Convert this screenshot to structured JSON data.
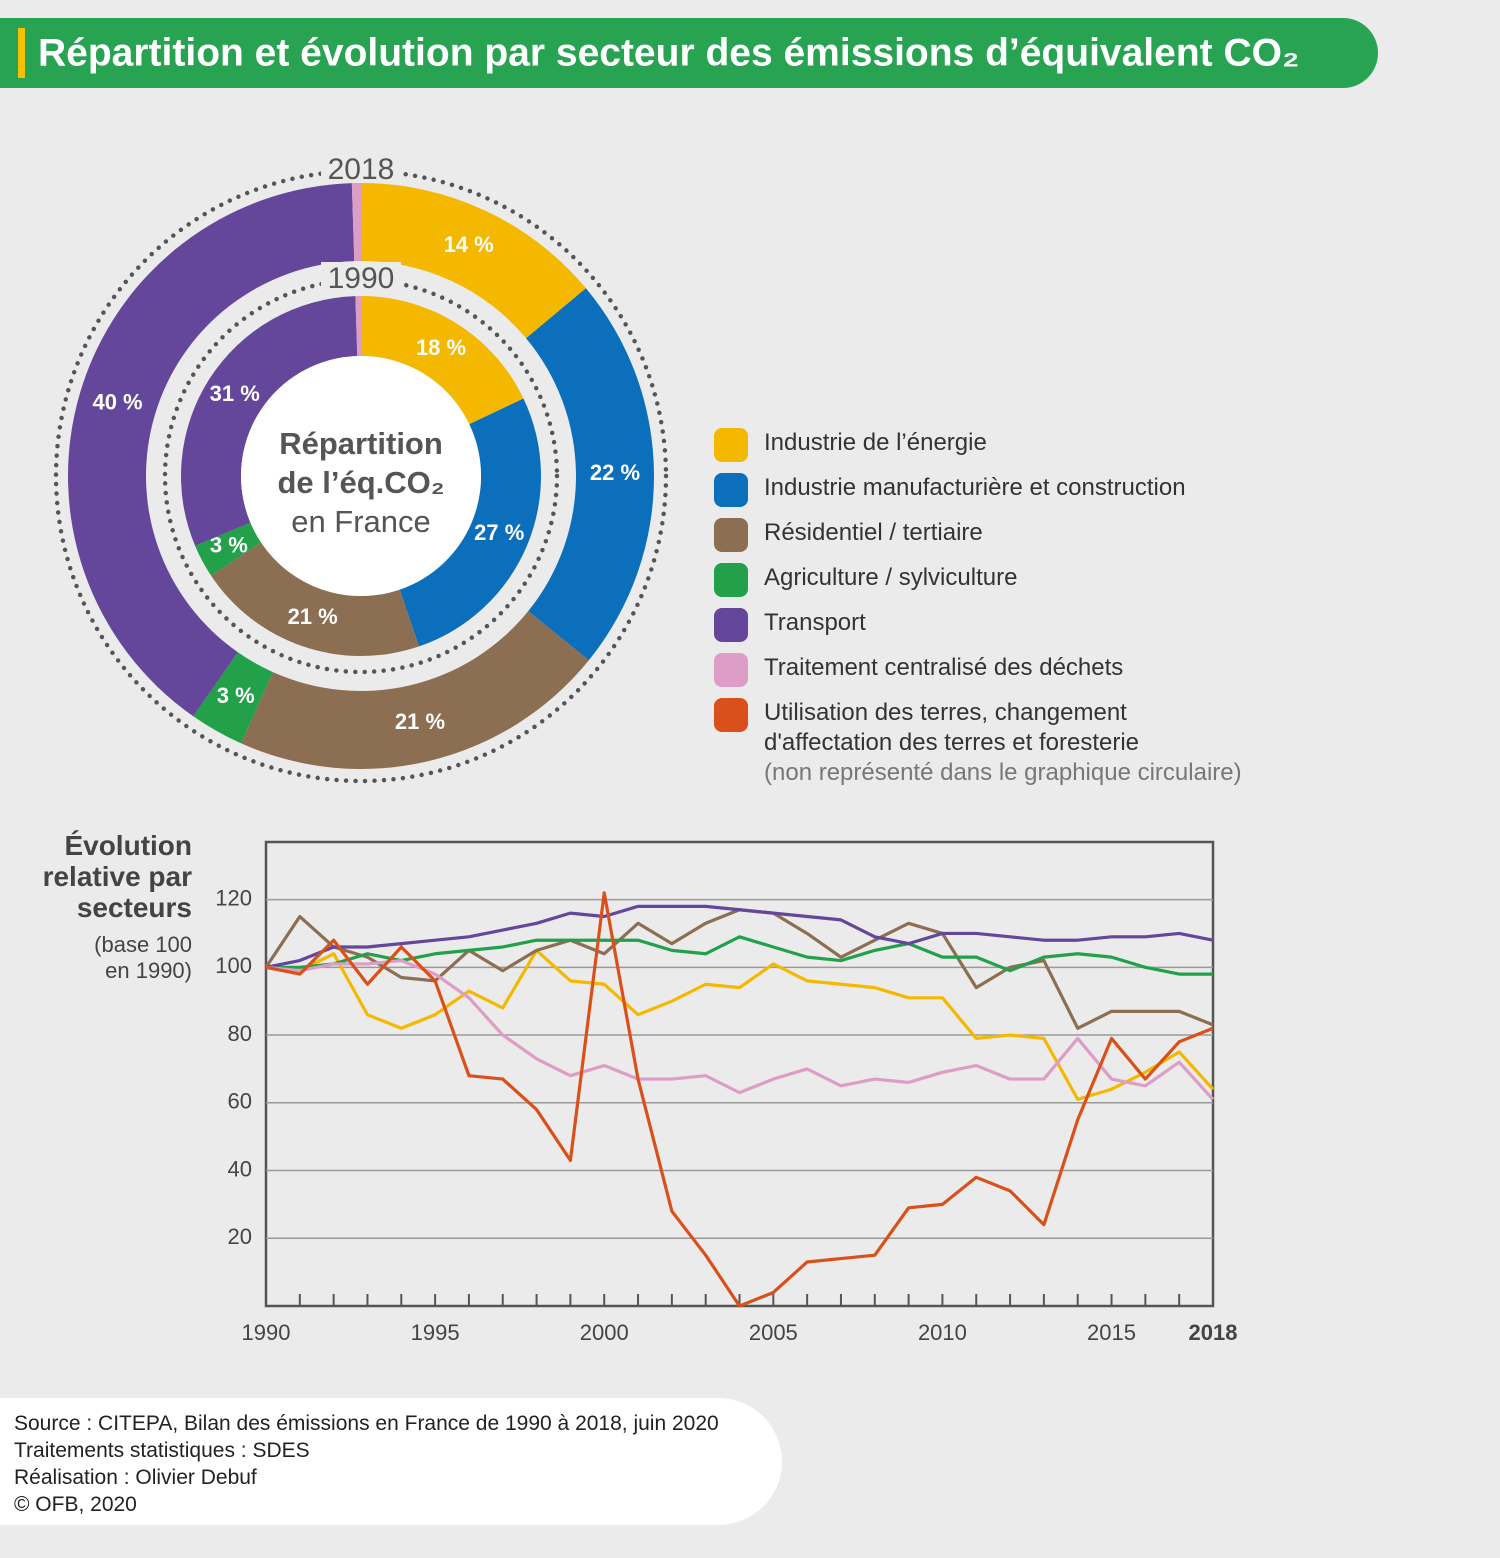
{
  "header": {
    "title": "Répartition et évolution par secteur des émissions d’équivalent CO₂"
  },
  "chart_data": [
    {
      "type": "donut",
      "center_text": [
        "Répartition",
        "de l’éq.CO₂",
        "en France"
      ],
      "categories": [
        "Industrie de l’énergie",
        "Industrie manufacturière et construction",
        "Résidentiel / tertiaire",
        "Agriculture / sylviculture",
        "Transport",
        "Traitement centralisé des déchets"
      ],
      "colors": [
        "#f5b800",
        "#0b6fbb",
        "#8c6e52",
        "#22a04a",
        "#64479a",
        "#dd9dc6"
      ],
      "series": [
        {
          "name": "2018",
          "values": [
            14,
            22,
            21,
            3,
            40,
            0.5
          ],
          "value_labels": [
            "14 %",
            "22 %",
            "21 %",
            "3 %",
            "40 %",
            null
          ]
        },
        {
          "name": "1990",
          "values": [
            18,
            27,
            21,
            3,
            31,
            0.5
          ],
          "value_labels": [
            "18 %",
            "27 %",
            "21 %",
            "3 %",
            "31 %",
            null
          ]
        }
      ],
      "legend_note": "(non représenté dans le graphique circulaire)"
    },
    {
      "type": "line",
      "ylabel": "Évolution relative par secteurs",
      "ylabel_note": "(base 100 en 1990)",
      "x": [
        1990,
        1991,
        1992,
        1993,
        1994,
        1995,
        1996,
        1997,
        1998,
        1999,
        2000,
        2001,
        2002,
        2003,
        2004,
        2005,
        2006,
        2007,
        2008,
        2009,
        2010,
        2011,
        2012,
        2013,
        2014,
        2015,
        2016,
        2017,
        2018
      ],
      "xlim": [
        1990,
        2018
      ],
      "xticks": [
        1990,
        1995,
        2000,
        2005,
        2010,
        2015,
        2018
      ],
      "ylim": [
        0,
        137
      ],
      "yticks": [
        20,
        40,
        60,
        80,
        100,
        120
      ],
      "grid": true,
      "series": [
        {
          "color": "#f5b800",
          "values": [
            100,
            99,
            104,
            86,
            82,
            86,
            93,
            88,
            105,
            96,
            95,
            86,
            90,
            95,
            94,
            101,
            96,
            95,
            94,
            91,
            91,
            79,
            80,
            79,
            61,
            64,
            69,
            75,
            64
          ]
        },
        {
          "color": "#8c6e52",
          "values": [
            100,
            115,
            106,
            103,
            97,
            96,
            105,
            99,
            105,
            108,
            104,
            113,
            107,
            113,
            117,
            116,
            110,
            103,
            108,
            113,
            110,
            94,
            100,
            102,
            82,
            87,
            87,
            87,
            83
          ]
        },
        {
          "color": "#22a04a",
          "values": [
            100,
            100,
            101,
            104,
            102,
            104,
            105,
            106,
            108,
            108,
            108,
            108,
            105,
            104,
            109,
            106,
            103,
            102,
            105,
            107,
            103,
            103,
            99,
            103,
            104,
            103,
            100,
            98,
            98
          ]
        },
        {
          "color": "#64479a",
          "values": [
            100,
            102,
            106,
            106,
            107,
            108,
            109,
            111,
            113,
            116,
            115,
            118,
            118,
            118,
            117,
            116,
            115,
            114,
            109,
            107,
            110,
            110,
            109,
            108,
            108,
            109,
            109,
            110,
            108
          ]
        },
        {
          "color": "#dd9dc6",
          "values": [
            100,
            99,
            101,
            101,
            102,
            98,
            91,
            80,
            73,
            68,
            71,
            67,
            67,
            68,
            63,
            67,
            70,
            65,
            67,
            66,
            69,
            71,
            67,
            67,
            79,
            67,
            65,
            72,
            61
          ]
        },
        {
          "name": "Utilisation des terres, changement d'affectation des terres et foresterie",
          "color": "#d9501a",
          "values": [
            100,
            98,
            108,
            95,
            106,
            96,
            68,
            67,
            58,
            43,
            122,
            67,
            28,
            15,
            0,
            4,
            13,
            14,
            15,
            29,
            30,
            38,
            34,
            24,
            55,
            79,
            67,
            78,
            82
          ]
        }
      ]
    }
  ],
  "footer": {
    "lines": [
      "Source : CITEPA, Bilan des émissions en France de 1990 à 2018, juin 2020",
      "Traitements statistiques : SDES",
      "Réalisation : Olivier Debuf",
      "© OFB, 2020"
    ]
  }
}
